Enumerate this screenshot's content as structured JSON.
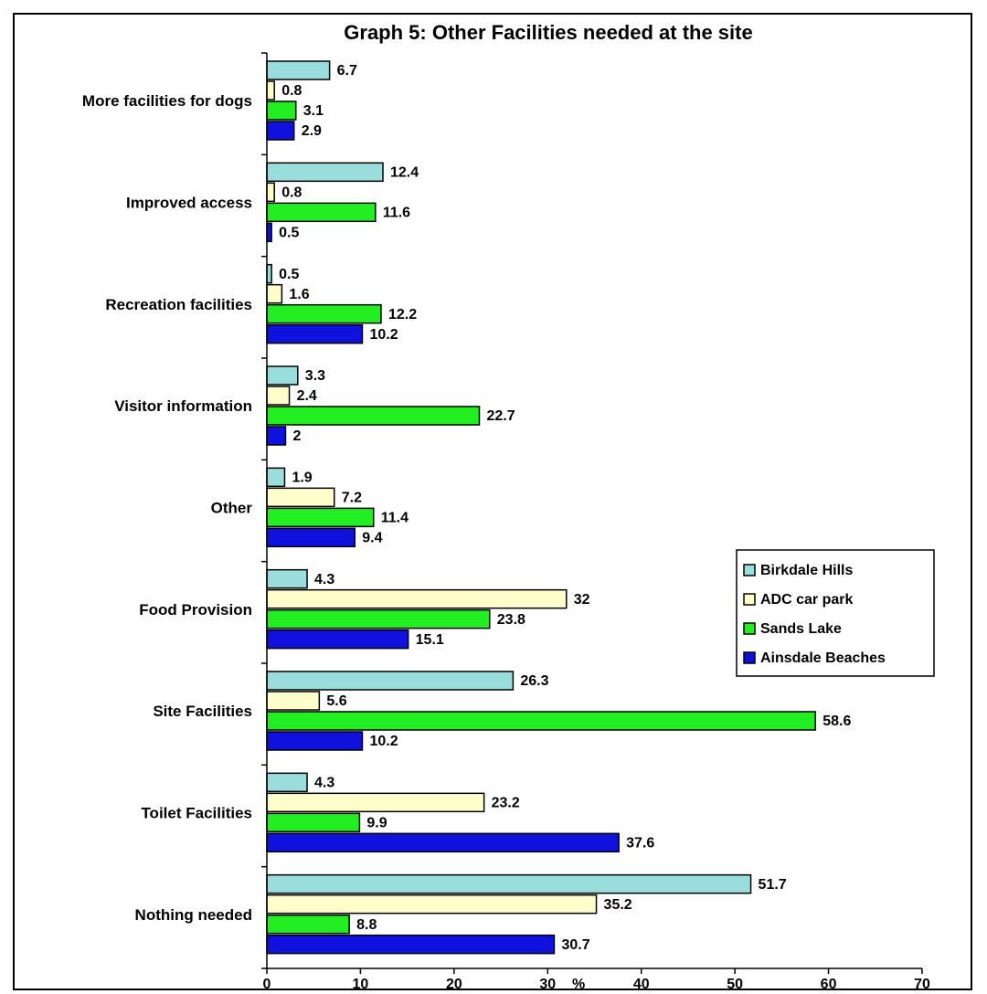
{
  "chart_data": {
    "type": "bar",
    "orientation": "horizontal",
    "title": "Graph 5: Other Facilities needed at the site",
    "xlabel": "%",
    "ylabel": "",
    "xlim": [
      0,
      70
    ],
    "xticks": [
      0,
      10,
      20,
      30,
      40,
      50,
      60,
      70
    ],
    "grid": false,
    "legend_position": "right",
    "categories": [
      "More facilities for dogs",
      "Improved access",
      "Recreation facilities",
      "Visitor information",
      "Other",
      "Food Provision",
      "Site Facilities",
      "Toilet Facilities",
      "Nothing needed"
    ],
    "series": [
      {
        "name": "Birkdale Hills",
        "color": "#99DDDD",
        "values": [
          6.7,
          12.4,
          0.5,
          3.3,
          1.9,
          4.3,
          26.3,
          4.3,
          51.7
        ]
      },
      {
        "name": "ADC car park",
        "color": "#FFFFCC",
        "values": [
          0.8,
          0.8,
          1.6,
          2.4,
          7.2,
          32,
          5.6,
          23.2,
          35.2
        ]
      },
      {
        "name": "Sands Lake",
        "color": "#22EE22",
        "values": [
          3.1,
          11.6,
          12.2,
          22.7,
          11.4,
          23.8,
          58.6,
          9.9,
          8.8
        ]
      },
      {
        "name": "Ainsdale Beaches",
        "color": "#1111DD",
        "values": [
          2.9,
          0.5,
          10.2,
          2,
          9.4,
          15.1,
          10.2,
          37.6,
          30.7
        ]
      }
    ]
  }
}
